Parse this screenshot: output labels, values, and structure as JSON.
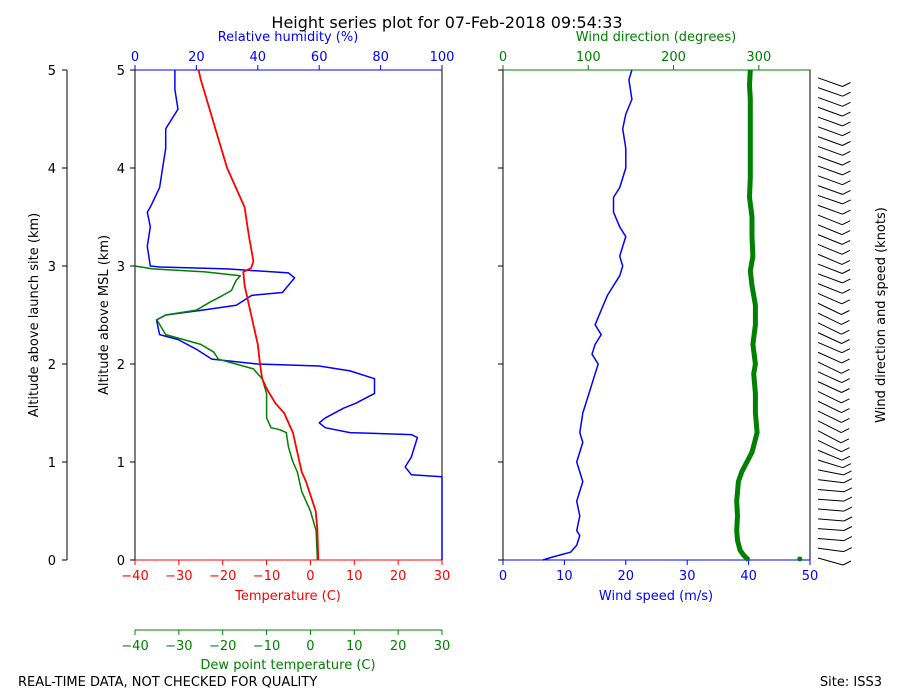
{
  "chart_data": [
    {
      "type": "line",
      "title": "Height series plot for 07-Feb-2018 09:54:33",
      "axes": {
        "left_outer_label": "Altitude above launch site (km)",
        "left_inner_label": "Altitude above MSL (km)",
        "y_ticks": [
          "0",
          "1",
          "2",
          "3",
          "4",
          "5"
        ],
        "ylim": [
          0,
          5
        ],
        "x_temp_label": "Temperature (C)",
        "x_temp_ticks": [
          "−40",
          "−30",
          "−20",
          "−10",
          "0",
          "10",
          "20",
          "30"
        ],
        "x_temp_lim": [
          -40,
          30
        ],
        "x_dew_label": "Dew point temperature (C)",
        "x_dew_ticks": [
          "−40",
          "−30",
          "−20",
          "−10",
          "0",
          "10",
          "20",
          "30"
        ],
        "x_rh_label": "Relative humidity (%)",
        "x_rh_ticks": [
          "0",
          "20",
          "40",
          "60",
          "80",
          "100"
        ],
        "x_rh_lim": [
          0,
          100
        ]
      },
      "colors": {
        "temperature": "#ff0000",
        "dewpoint": "#008000",
        "humidity": "#0000ff"
      },
      "series": [
        {
          "key": "temperature",
          "values": [
            [
              1.8,
              0.0
            ],
            [
              1.6,
              0.3
            ],
            [
              1.2,
              0.5
            ],
            [
              -1.0,
              0.8
            ],
            [
              -2.0,
              0.9
            ],
            [
              -3.0,
              1.1
            ],
            [
              -4.0,
              1.3
            ],
            [
              -6.0,
              1.5
            ],
            [
              -8.0,
              1.6
            ],
            [
              -10.0,
              1.75
            ],
            [
              -11.0,
              1.85
            ],
            [
              -11.5,
              2.0
            ],
            [
              -12.0,
              2.2
            ],
            [
              -13.0,
              2.4
            ],
            [
              -14.0,
              2.6
            ],
            [
              -15.0,
              2.8
            ],
            [
              -15.3,
              2.94
            ],
            [
              -13.5,
              2.98
            ],
            [
              -13.0,
              3.05
            ],
            [
              -14.0,
              3.3
            ],
            [
              -15.0,
              3.6
            ],
            [
              -17.0,
              3.8
            ],
            [
              -19.0,
              4.0
            ],
            [
              -20.0,
              4.15
            ],
            [
              -21.0,
              4.3
            ],
            [
              -23.0,
              4.6
            ],
            [
              -25.0,
              4.9
            ],
            [
              -25.5,
              5.0
            ]
          ]
        },
        {
          "key": "dewpoint",
          "values": [
            [
              1.6,
              0.0
            ],
            [
              1.3,
              0.3
            ],
            [
              0.0,
              0.5
            ],
            [
              -2.0,
              0.7
            ],
            [
              -3.0,
              0.9
            ],
            [
              -4.0,
              1.0
            ],
            [
              -5.0,
              1.15
            ],
            [
              -5.5,
              1.3
            ],
            [
              -7.0,
              1.33
            ],
            [
              -9.0,
              1.35
            ],
            [
              -10.0,
              1.45
            ],
            [
              -10.0,
              1.7
            ],
            [
              -11.0,
              1.85
            ],
            [
              -13.0,
              1.95
            ],
            [
              -21.0,
              2.05
            ],
            [
              -22.0,
              2.12
            ],
            [
              -25.0,
              2.2
            ],
            [
              -33.0,
              2.3
            ],
            [
              -35.0,
              2.45
            ],
            [
              -33.0,
              2.5
            ],
            [
              -26.0,
              2.55
            ],
            [
              -23.0,
              2.63
            ],
            [
              -20.0,
              2.7
            ],
            [
              -18.0,
              2.75
            ],
            [
              -17.0,
              2.85
            ],
            [
              -16.0,
              2.9
            ],
            [
              -24.0,
              2.94
            ],
            [
              -36.0,
              2.97
            ],
            [
              -40.0,
              3.0
            ]
          ]
        },
        {
          "key": "humidity",
          "values": [
            [
              100,
              0.0
            ],
            [
              100,
              0.85
            ],
            [
              90,
              0.87
            ],
            [
              88,
              0.95
            ],
            [
              90,
              1.05
            ],
            [
              92,
              1.25
            ],
            [
              90,
              1.28
            ],
            [
              70,
              1.3
            ],
            [
              62,
              1.35
            ],
            [
              60,
              1.4
            ],
            [
              62,
              1.45
            ],
            [
              68,
              1.55
            ],
            [
              72,
              1.6
            ],
            [
              78,
              1.7
            ],
            [
              78,
              1.85
            ],
            [
              70,
              1.93
            ],
            [
              60,
              1.98
            ],
            [
              40,
              2.0
            ],
            [
              25,
              2.05
            ],
            [
              20,
              2.15
            ],
            [
              14,
              2.25
            ],
            [
              8,
              2.3
            ],
            [
              7,
              2.45
            ],
            [
              10,
              2.5
            ],
            [
              22,
              2.55
            ],
            [
              33,
              2.6
            ],
            [
              38,
              2.7
            ],
            [
              48,
              2.73
            ],
            [
              52,
              2.88
            ],
            [
              50,
              2.93
            ],
            [
              30,
              2.97
            ],
            [
              8,
              2.99
            ],
            [
              5,
              3.0
            ],
            [
              4,
              3.2
            ],
            [
              5,
              3.4
            ],
            [
              4,
              3.55
            ],
            [
              5,
              3.6
            ],
            [
              8,
              3.8
            ],
            [
              9,
              4.0
            ],
            [
              10,
              4.2
            ],
            [
              10,
              4.4
            ],
            [
              12,
              4.5
            ],
            [
              14,
              4.6
            ],
            [
              13,
              4.8
            ],
            [
              13,
              5.0
            ]
          ]
        }
      ]
    },
    {
      "type": "line",
      "axes": {
        "x_speed_label": "Wind speed (m/s)",
        "x_speed_ticks": [
          "0",
          "10",
          "20",
          "30",
          "40",
          "50"
        ],
        "x_speed_lim": [
          0,
          50
        ],
        "x_dir_label": "Wind direction (degrees)",
        "x_dir_ticks": [
          "0",
          "100",
          "200",
          "300"
        ],
        "x_dir_lim": [
          0,
          360
        ],
        "right_label": "Wind direction and speed (knots)",
        "ylim": [
          0,
          5
        ]
      },
      "colors": {
        "speed": "#0000ff",
        "direction": "#008000"
      },
      "series": [
        {
          "key": "speed",
          "values": [
            [
              6.5,
              0.0
            ],
            [
              8,
              0.03
            ],
            [
              11,
              0.08
            ],
            [
              12,
              0.15
            ],
            [
              12.5,
              0.25
            ],
            [
              12,
              0.3
            ],
            [
              12.5,
              0.45
            ],
            [
              12,
              0.6
            ],
            [
              13,
              0.8
            ],
            [
              12,
              1.0
            ],
            [
              13,
              1.2
            ],
            [
              12.5,
              1.3
            ],
            [
              13,
              1.5
            ],
            [
              14,
              1.7
            ],
            [
              15,
              1.9
            ],
            [
              15.5,
              2.0
            ],
            [
              14.5,
              2.1
            ],
            [
              15,
              2.2
            ],
            [
              16,
              2.3
            ],
            [
              15,
              2.4
            ],
            [
              16,
              2.55
            ],
            [
              17,
              2.7
            ],
            [
              18,
              2.8
            ],
            [
              19,
              2.9
            ],
            [
              19.5,
              3.0
            ],
            [
              19,
              3.1
            ],
            [
              19.5,
              3.2
            ],
            [
              20,
              3.3
            ],
            [
              19,
              3.4
            ],
            [
              18,
              3.55
            ],
            [
              18,
              3.7
            ],
            [
              19,
              3.8
            ],
            [
              20,
              4.0
            ],
            [
              20,
              4.2
            ],
            [
              19.5,
              4.4
            ],
            [
              20,
              4.55
            ],
            [
              21,
              4.7
            ],
            [
              20.5,
              4.9
            ],
            [
              21,
              5.0
            ]
          ]
        },
        {
          "key": "direction",
          "values": [
            [
              288,
              0.0
            ],
            [
              282,
              0.05
            ],
            [
              278,
              0.1
            ],
            [
              275,
              0.2
            ],
            [
              274,
              0.3
            ],
            [
              275,
              0.45
            ],
            [
              274,
              0.6
            ],
            [
              276,
              0.8
            ],
            [
              280,
              0.9
            ],
            [
              286,
              1.0
            ],
            [
              292,
              1.1
            ],
            [
              298,
              1.3
            ],
            [
              296,
              1.5
            ],
            [
              296,
              1.7
            ],
            [
              294,
              1.9
            ],
            [
              296,
              2.0
            ],
            [
              293,
              2.2
            ],
            [
              296,
              2.4
            ],
            [
              296,
              2.6
            ],
            [
              292,
              2.8
            ],
            [
              290,
              2.95
            ],
            [
              293,
              3.1
            ],
            [
              292,
              3.3
            ],
            [
              292,
              3.5
            ],
            [
              289,
              3.7
            ],
            [
              290,
              3.9
            ],
            [
              290,
              4.1
            ],
            [
              290,
              4.3
            ],
            [
              290,
              4.5
            ],
            [
              290,
              4.7
            ],
            [
              289,
              4.85
            ],
            [
              290,
              5.0
            ]
          ]
        }
      ]
    }
  ],
  "footer": {
    "left": "REAL-TIME DATA, NOT CHECKED FOR QUALITY",
    "right": "Site: ISS3"
  }
}
